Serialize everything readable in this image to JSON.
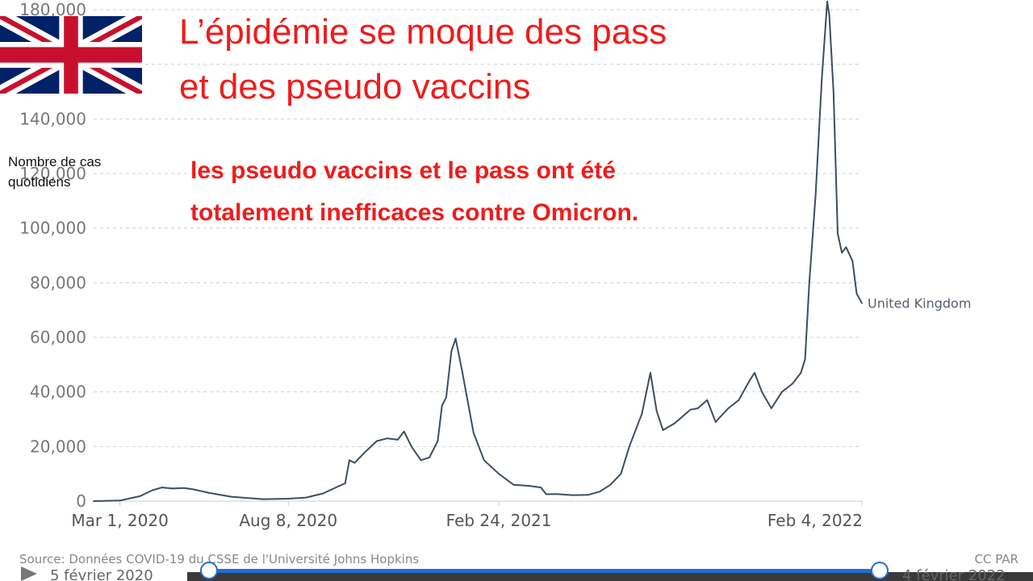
{
  "overlay": {
    "title_lines": [
      "L’épidémie se moque des pass",
      "et des pseudo vaccins"
    ],
    "subtitle_lines": [
      "les pseudo vaccins et le pass ont été",
      "totalement inefficaces contre Omicron."
    ],
    "ylabel_lines": [
      "Nombre de cas",
      "quotidiens"
    ],
    "flag_icon": "uk-flag-icon",
    "title_color": "#ee1c1c"
  },
  "source": "Source: Données COVID-19 du CSSE de l'Université Johns Hopkins",
  "license": "CC PAR",
  "slider": {
    "start_label": "5 février 2020",
    "end_label": "4 février 2022"
  },
  "chart_data": {
    "type": "line",
    "ylim": [
      0,
      180000
    ],
    "grid": true,
    "yticks": [
      0,
      20000,
      40000,
      60000,
      80000,
      100000,
      120000,
      140000,
      160000,
      180000
    ],
    "ytick_labels": [
      "0",
      "20,000",
      "40,000",
      "60,000",
      "80,000",
      "100,000",
      "120,000",
      "140,000",
      "160,000",
      "180,000"
    ],
    "x_range": [
      "2020-02-05",
      "2022-02-04"
    ],
    "xticks": [
      "2020-03-01",
      "2020-08-08",
      "2021-02-24",
      "2022-02-04"
    ],
    "xtick_labels": [
      "Mar 1, 2020",
      "Aug 8, 2020",
      "Feb 24, 2021",
      "Feb 4, 2022"
    ],
    "series": [
      {
        "name": "United Kingdom",
        "color": "#3e4d61",
        "points": [
          [
            "2020-02-05",
            0
          ],
          [
            "2020-03-01",
            200
          ],
          [
            "2020-03-20",
            1800
          ],
          [
            "2020-04-01",
            4000
          ],
          [
            "2020-04-10",
            5000
          ],
          [
            "2020-04-20",
            4600
          ],
          [
            "2020-05-01",
            4800
          ],
          [
            "2020-05-10",
            4300
          ],
          [
            "2020-05-25",
            3000
          ],
          [
            "2020-06-15",
            1600
          ],
          [
            "2020-07-15",
            700
          ],
          [
            "2020-08-08",
            900
          ],
          [
            "2020-08-25",
            1300
          ],
          [
            "2020-09-10",
            2800
          ],
          [
            "2020-09-25",
            5500
          ],
          [
            "2020-10-01",
            6500
          ],
          [
            "2020-10-05",
            15000
          ],
          [
            "2020-10-10",
            14000
          ],
          [
            "2020-10-20",
            18000
          ],
          [
            "2020-10-31",
            22000
          ],
          [
            "2020-11-10",
            23000
          ],
          [
            "2020-11-20",
            22500
          ],
          [
            "2020-11-26",
            25500
          ],
          [
            "2020-12-03",
            20000
          ],
          [
            "2020-12-12",
            15000
          ],
          [
            "2020-12-20",
            16000
          ],
          [
            "2020-12-28",
            22000
          ],
          [
            "2021-01-01",
            35000
          ],
          [
            "2021-01-05",
            38000
          ],
          [
            "2021-01-10",
            55000
          ],
          [
            "2021-01-14",
            59500
          ],
          [
            "2021-01-20",
            48000
          ],
          [
            "2021-01-31",
            25000
          ],
          [
            "2021-02-10",
            15000
          ],
          [
            "2021-02-24",
            10000
          ],
          [
            "2021-03-10",
            6000
          ],
          [
            "2021-03-25",
            5600
          ],
          [
            "2021-04-05",
            5000
          ],
          [
            "2021-04-10",
            2500
          ],
          [
            "2021-04-20",
            2600
          ],
          [
            "2021-05-05",
            2200
          ],
          [
            "2021-05-20",
            2300
          ],
          [
            "2021-05-31",
            3500
          ],
          [
            "2021-06-10",
            6000
          ],
          [
            "2021-06-20",
            10000
          ],
          [
            "2021-06-28",
            20000
          ],
          [
            "2021-07-10",
            32000
          ],
          [
            "2021-07-18",
            47000
          ],
          [
            "2021-07-24",
            33000
          ],
          [
            "2021-07-30",
            26000
          ],
          [
            "2021-08-10",
            28500
          ],
          [
            "2021-08-25",
            33500
          ],
          [
            "2021-09-01",
            34000
          ],
          [
            "2021-09-10",
            37000
          ],
          [
            "2021-09-18",
            29000
          ],
          [
            "2021-09-30",
            34000
          ],
          [
            "2021-10-10",
            37000
          ],
          [
            "2021-10-20",
            44000
          ],
          [
            "2021-10-25",
            47000
          ],
          [
            "2021-11-01",
            40000
          ],
          [
            "2021-11-10",
            34000
          ],
          [
            "2021-11-20",
            40000
          ],
          [
            "2021-11-30",
            43000
          ],
          [
            "2021-12-08",
            47000
          ],
          [
            "2021-12-12",
            52000
          ],
          [
            "2021-12-16",
            80000
          ],
          [
            "2021-12-22",
            112000
          ],
          [
            "2021-12-28",
            155000
          ],
          [
            "2022-01-02",
            183000
          ],
          [
            "2022-01-04",
            178000
          ],
          [
            "2022-01-08",
            150000
          ],
          [
            "2022-01-12",
            98000
          ],
          [
            "2022-01-16",
            91000
          ],
          [
            "2022-01-20",
            93000
          ],
          [
            "2022-01-26",
            88000
          ],
          [
            "2022-01-30",
            76000
          ],
          [
            "2022-02-04",
            72500
          ]
        ]
      }
    ]
  }
}
